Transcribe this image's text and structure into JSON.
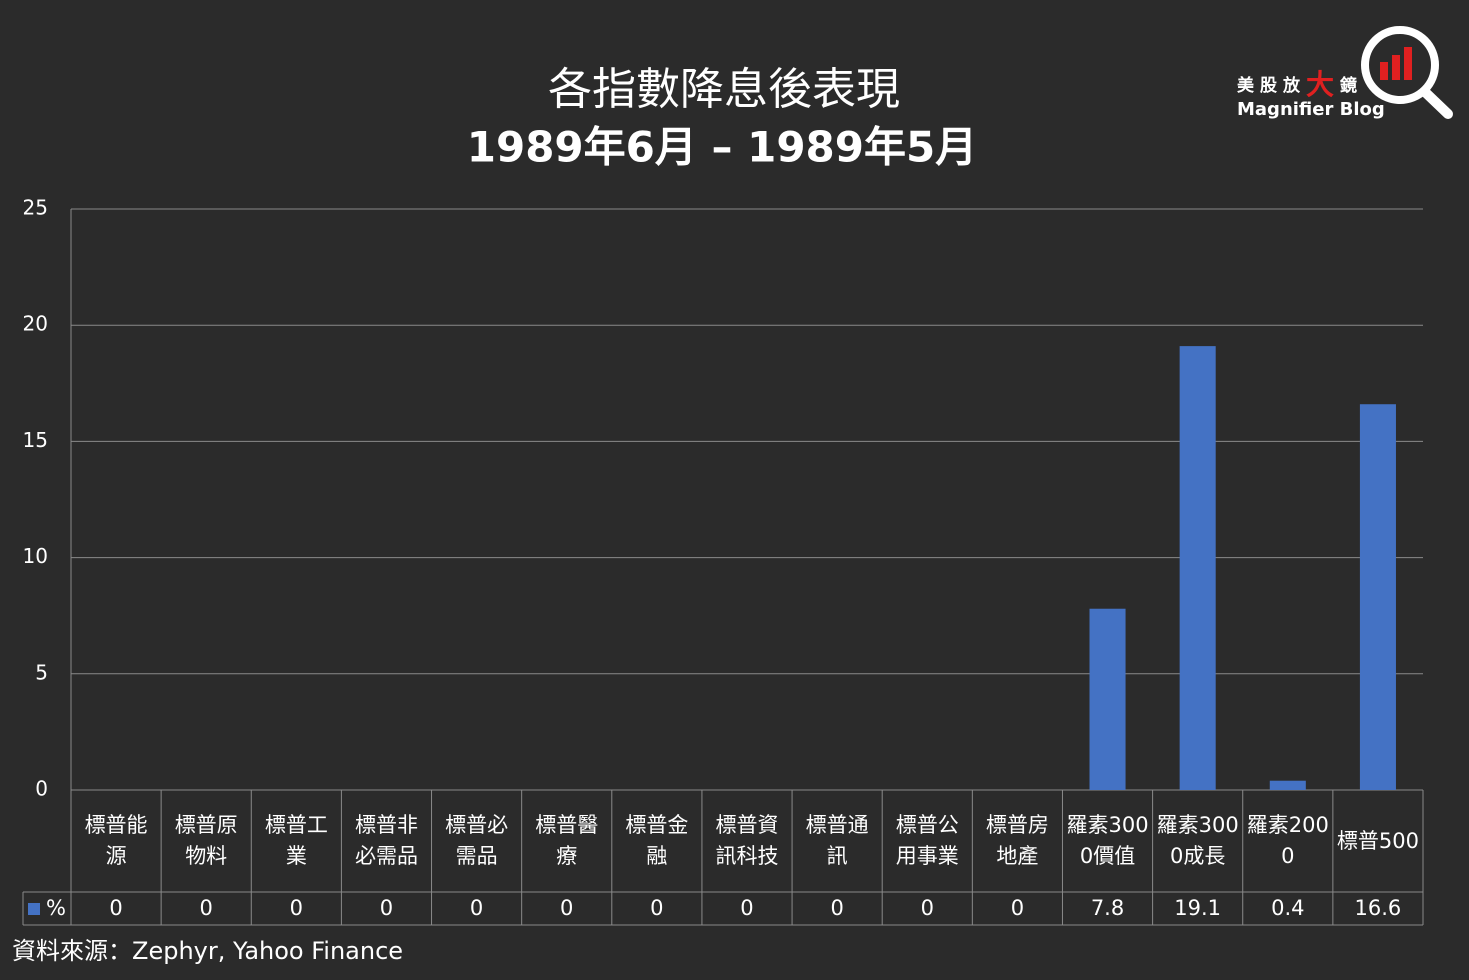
{
  "chart_data": {
    "type": "bar",
    "title": "各指數降息後表現",
    "subtitle": "1989年6月 – 1989年5月",
    "categories": [
      "標普能源",
      "標普原物料",
      "標普工業",
      "標普非必需品",
      "標普必需品",
      "標普醫療",
      "標普金融",
      "標普資訊科技",
      "標普通訊",
      "標普公用事業",
      "標普房地產",
      "羅素3000價值",
      "羅素3000成長",
      "羅素2000",
      "標普500"
    ],
    "series": [
      {
        "name": "%",
        "color": "#4472c4",
        "values": [
          0,
          0,
          0,
          0,
          0,
          0,
          0,
          0,
          0,
          0,
          0,
          7.8,
          19.1,
          0.4,
          16.6
        ]
      }
    ],
    "ylim": [
      0,
      25
    ],
    "yticks": [
      0,
      5,
      10,
      15,
      20,
      25
    ],
    "grid": true,
    "source": "資料來源：Zephyr, Yahoo Finance",
    "logo": {
      "name_parts": [
        "美股放",
        "大",
        "鏡"
      ],
      "subtitle": "Magnifier Blog"
    }
  }
}
